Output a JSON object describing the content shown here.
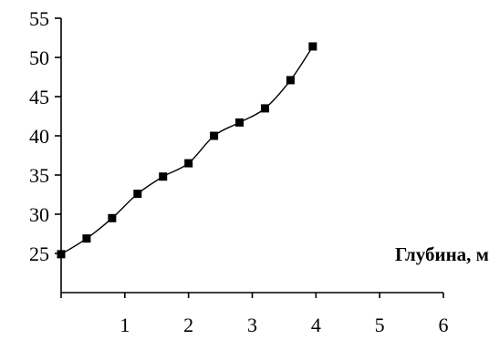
{
  "chart_data": {
    "type": "line",
    "title": "",
    "xlabel": "Глубина, м",
    "ylabel": "",
    "xlim": [
      0,
      6
    ],
    "ylim": [
      20,
      55
    ],
    "x_ticks": [
      1,
      2,
      3,
      4,
      5,
      6
    ],
    "x_tick_labels": [
      "1",
      "2",
      "3",
      "4",
      "5",
      "6"
    ],
    "y_ticks": [
      25,
      30,
      35,
      40,
      45,
      50,
      55
    ],
    "y_tick_labels": [
      "25",
      "30",
      "35",
      "40",
      "45",
      "50",
      "55"
    ],
    "grid": false,
    "marker": "square",
    "colors": {
      "line": "#000000",
      "marker": "#000000",
      "axis": "#000000"
    },
    "series": [
      {
        "x": [
          0,
          0.4,
          0.8,
          1.2,
          1.6,
          2.0,
          2.4,
          2.8,
          3.2,
          3.6,
          3.95
        ],
        "values": [
          24.9,
          26.9,
          29.5,
          32.6,
          34.8,
          36.5,
          40.0,
          41.7,
          43.5,
          47.1,
          51.4
        ]
      }
    ]
  }
}
